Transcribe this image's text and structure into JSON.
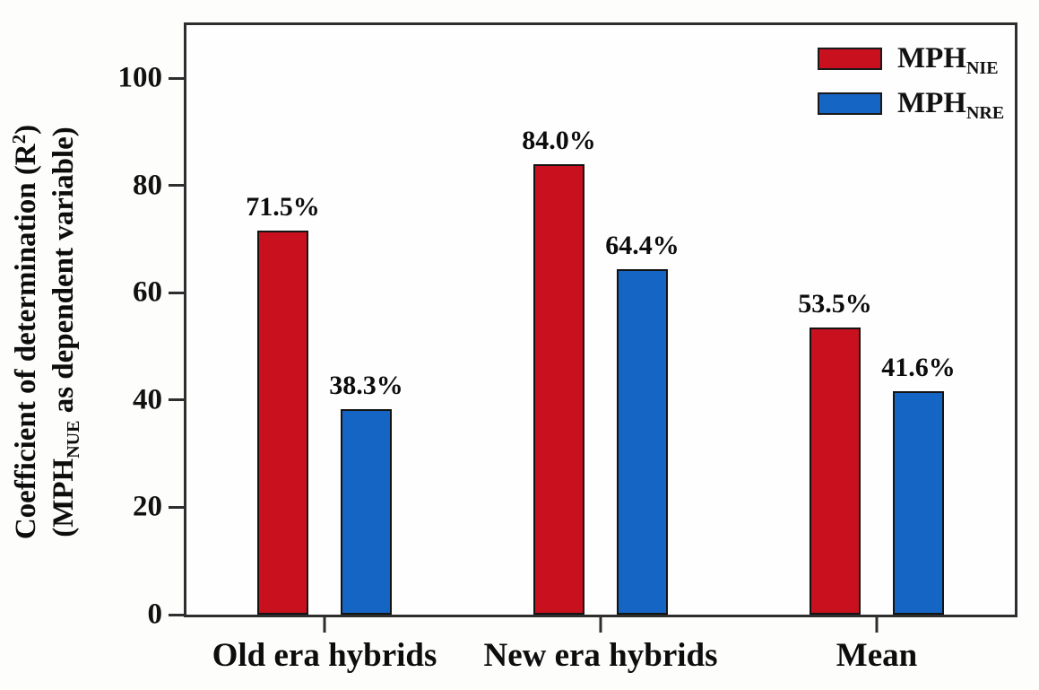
{
  "y_axis": {
    "title_line1_pre": "Coefficient of determination (R",
    "title_line1_sup": "2",
    "title_line1_post": ")",
    "title_line2_pre": "(MPH",
    "title_line2_sub": "NUE",
    "title_line2_post": " as dependent variable)",
    "tick_labels": [
      "0",
      "20",
      "40",
      "60",
      "80",
      "100"
    ]
  },
  "x_axis": {
    "categories": [
      "Old era hybrids",
      "New era hybrids",
      "Mean"
    ]
  },
  "legend": {
    "items": [
      {
        "main": "MPH",
        "sub": "NIE",
        "color": "#c8101e"
      },
      {
        "main": "MPH",
        "sub": "NRE",
        "color": "#1565c4"
      }
    ]
  },
  "colors": {
    "series_red": "#c8101e",
    "series_blue": "#1565c4",
    "axis": "#2e2e2e"
  },
  "chart_data": {
    "type": "bar",
    "categories": [
      "Old era hybrids",
      "New era hybrids",
      "Mean"
    ],
    "series": [
      {
        "name": "MPH_NIE",
        "color": "#c8101e",
        "values": [
          71.5,
          84.0,
          53.5
        ],
        "point_labels": [
          "71.5%",
          "84.0%",
          "53.5%"
        ]
      },
      {
        "name": "MPH_NRE",
        "color": "#1565c4",
        "values": [
          38.3,
          64.4,
          41.6
        ],
        "point_labels": [
          "38.3%",
          "64.4%",
          "41.6%"
        ]
      }
    ],
    "title": "",
    "xlabel": "",
    "ylabel": "Coefficient of determination (R2) (MPH_NUE as dependent variable)",
    "ylim": [
      0,
      100
    ],
    "y_ticks": [
      0,
      20,
      40,
      60,
      80,
      100
    ],
    "grid": false,
    "legend_position": "inside-top-right",
    "value_label_format": "percent"
  }
}
